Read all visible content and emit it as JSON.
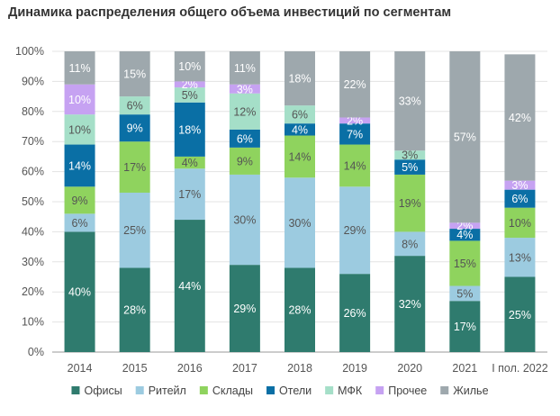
{
  "chart_data": {
    "type": "bar",
    "stacked": true,
    "percent": true,
    "title": "Динамика распределения общего объема инвестиций по сегментам",
    "xlabel": "",
    "ylabel": "",
    "ylim": [
      0,
      100
    ],
    "yticks": [
      "0%",
      "10%",
      "20%",
      "30%",
      "40%",
      "50%",
      "60%",
      "70%",
      "80%",
      "90%",
      "100%"
    ],
    "categories": [
      "2014",
      "2015",
      "2016",
      "2017",
      "2018",
      "2019",
      "2020",
      "2021",
      "I пол. 2022"
    ],
    "legend_position": "bottom",
    "series": [
      {
        "name": "Офисы",
        "color": "#2f7b6e",
        "label_color": "#ffffff",
        "values": [
          40,
          28,
          44,
          29,
          28,
          26,
          32,
          17,
          25
        ]
      },
      {
        "name": "Ритейл",
        "color": "#9ccbe0",
        "label_color": "#555555",
        "values": [
          6,
          25,
          17,
          30,
          30,
          29,
          8,
          5,
          13
        ]
      },
      {
        "name": "Склады",
        "color": "#8fd35e",
        "label_color": "#555555",
        "values": [
          9,
          17,
          4,
          9,
          14,
          14,
          19,
          15,
          10
        ]
      },
      {
        "name": "Отели",
        "color": "#0a6fa5",
        "label_color": "#ffffff",
        "values": [
          14,
          9,
          18,
          6,
          4,
          7,
          5,
          4,
          6
        ]
      },
      {
        "name": "МФК",
        "color": "#a5dfc8",
        "label_color": "#555555",
        "values": [
          10,
          6,
          5,
          12,
          6,
          0,
          3,
          0,
          0
        ]
      },
      {
        "name": "Прочее",
        "color": "#c6a2f2",
        "label_color": "#ffffff",
        "values": [
          10,
          0,
          2,
          3,
          0,
          2,
          0,
          2,
          3
        ]
      },
      {
        "name": "Жилье",
        "color": "#9ea8ad",
        "label_color": "#ffffff",
        "values": [
          11,
          15,
          10,
          11,
          18,
          22,
          33,
          57,
          42
        ]
      }
    ]
  }
}
